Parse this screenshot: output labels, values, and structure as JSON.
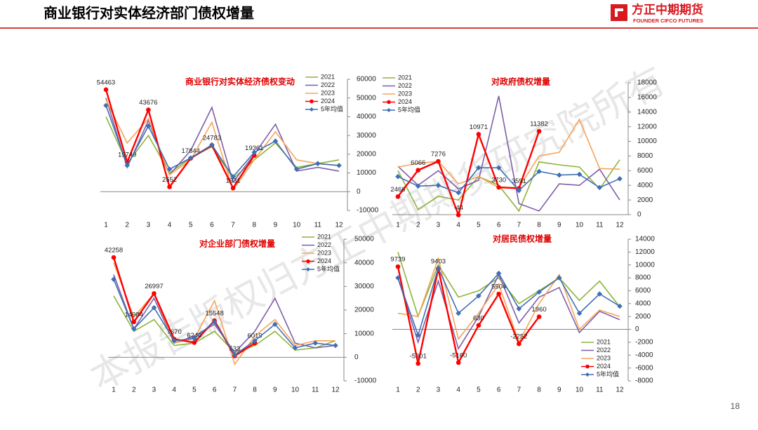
{
  "header": {
    "title": "商业银行对实体经济部门债权增量",
    "logo": "方正中期期货",
    "logo_en": "FOUNDER CIFCO FUTURES",
    "page": "18",
    "watermark": "本报告版权归方正中期期货研究院所有"
  },
  "chart_data": [
    {
      "type": "line",
      "title": "商业银行对实体经济债权变动",
      "legend": "upper right",
      "categories": [
        "1",
        "2",
        "3",
        "4",
        "5",
        "6",
        "7",
        "8",
        "9",
        "10",
        "11",
        "12"
      ],
      "ylim": [
        -10000,
        60000
      ],
      "yticks": [
        -10000,
        0,
        10000,
        20000,
        30000,
        40000,
        50000,
        60000
      ],
      "series": [
        {
          "name": "2021",
          "color": "#8fb339",
          "values": [
            40000,
            15000,
            30000,
            10000,
            18000,
            24000,
            7000,
            17000,
            26000,
            13000,
            15000,
            17000
          ]
        },
        {
          "name": "2022",
          "color": "#7f5fa8",
          "values": [
            50000,
            13000,
            38000,
            9000,
            22000,
            45000,
            5000,
            20000,
            36000,
            11000,
            13000,
            11000
          ]
        },
        {
          "name": "2023",
          "color": "#f5a55a",
          "values": [
            49000,
            26000,
            39000,
            9000,
            17000,
            37000,
            1000,
            17000,
            32000,
            17000,
            15000,
            14000
          ]
        },
        {
          "name": "2024",
          "color": "#ff0000",
          "marker": "circle",
          "show_labels": true,
          "values": [
            54463,
            15749,
            43676,
            2552,
            17844,
            24783,
            1931,
            19361,
            null,
            null,
            null,
            null
          ]
        },
        {
          "name": "5年均值",
          "color": "#3f6fb5",
          "marker": "diamond",
          "values": [
            46000,
            14000,
            35000,
            12000,
            18000,
            25000,
            8000,
            21000,
            27000,
            12000,
            15000,
            14000
          ]
        }
      ]
    },
    {
      "type": "line",
      "title": "对政府债权增量",
      "legend": "upper left",
      "categories": [
        "1",
        "2",
        "3",
        "4",
        "5",
        "6",
        "7",
        "8",
        "9",
        "10",
        "11",
        "12"
      ],
      "ylim": [
        0,
        18000
      ],
      "yticks": [
        0,
        2000,
        4000,
        6000,
        8000,
        10000,
        12000,
        14000,
        16000,
        18000
      ],
      "series": [
        {
          "name": "2021",
          "color": "#8fb339",
          "values": [
            6000,
            700,
            2500,
            2000,
            5200,
            4000,
            500,
            7200,
            6800,
            6500,
            3500,
            7500
          ]
        },
        {
          "name": "2022",
          "color": "#7f5fa8",
          "values": [
            6600,
            4000,
            6000,
            3500,
            4700,
            16200,
            1500,
            500,
            4200,
            4000,
            6200,
            2000
          ]
        },
        {
          "name": "2023",
          "color": "#f5a55a",
          "values": [
            6500,
            7000,
            7300,
            4200,
            5200,
            3700,
            3700,
            8000,
            8500,
            13000,
            6300,
            6200
          ]
        },
        {
          "name": "2024",
          "color": "#ff0000",
          "marker": "circle",
          "show_labels": true,
          "values": [
            2466,
            6066,
            7276,
            -44,
            10971,
            3730,
            3591,
            11382,
            null,
            null,
            null,
            null
          ]
        },
        {
          "name": "5年均值",
          "color": "#3f6fb5",
          "marker": "diamond",
          "values": [
            5200,
            3900,
            4000,
            3000,
            6400,
            6400,
            3300,
            5900,
            5400,
            5500,
            3700,
            4900
          ]
        }
      ]
    },
    {
      "type": "line",
      "title": "对企业部门债权增量",
      "legend": "upper right",
      "categories": [
        "1",
        "2",
        "3",
        "4",
        "5",
        "6",
        "7",
        "8",
        "9",
        "10",
        "11",
        "12"
      ],
      "ylim": [
        -10000,
        50000
      ],
      "yticks": [
        -10000,
        0,
        10000,
        20000,
        30000,
        40000,
        50000
      ],
      "series": [
        {
          "name": "2021",
          "color": "#8fb339",
          "values": [
            26000,
            11000,
            16000,
            5000,
            6000,
            11000,
            2000,
            5000,
            11000,
            3000,
            4000,
            7000
          ]
        },
        {
          "name": "2022",
          "color": "#7f5fa8",
          "values": [
            35000,
            12000,
            25000,
            6000,
            9000,
            14000,
            2000,
            11000,
            25000,
            6000,
            4000,
            5000
          ]
        },
        {
          "name": "2023",
          "color": "#f5a55a",
          "values": [
            40000,
            17000,
            27000,
            6000,
            8000,
            24000,
            -3000,
            9000,
            16000,
            5000,
            7000,
            7000
          ]
        },
        {
          "name": "2024",
          "color": "#ff0000",
          "marker": "circle",
          "show_labels": true,
          "values": [
            42258,
            14984,
            26997,
            7670,
            6244,
            15548,
            533,
            6019,
            null,
            null,
            null,
            null
          ]
        },
        {
          "name": "5年均值",
          "color": "#3f6fb5",
          "marker": "diamond",
          "values": [
            33000,
            12000,
            21000,
            7000,
            8000,
            15000,
            1000,
            7000,
            14000,
            4000,
            6000,
            5000
          ]
        }
      ]
    },
    {
      "type": "line",
      "title": "对居民债权增量",
      "legend": "lower right",
      "categories": [
        "1",
        "2",
        "3",
        "4",
        "5",
        "6",
        "7",
        "8",
        "9",
        "10",
        "11",
        "12"
      ],
      "ylim": [
        -8000,
        14000
      ],
      "yticks": [
        -8000,
        -6000,
        -4000,
        -2000,
        0,
        2000,
        4000,
        6000,
        8000,
        10000,
        12000,
        14000
      ],
      "series": [
        {
          "name": "2021",
          "color": "#8fb339",
          "values": [
            12000,
            2000,
            10000,
            5000,
            6000,
            8000,
            4000,
            6000,
            8000,
            4500,
            7500,
            3500
          ]
        },
        {
          "name": "2022",
          "color": "#7f5fa8",
          "values": [
            8000,
            -2000,
            7500,
            -3000,
            2000,
            8500,
            1000,
            5000,
            6500,
            -500,
            2800,
            1500
          ]
        },
        {
          "name": "2023",
          "color": "#f5a55a",
          "values": [
            2500,
            2000,
            11000,
            -1500,
            2500,
            7000,
            -2000,
            4000,
            8500,
            0,
            3000,
            2000
          ]
        },
        {
          "name": "2024",
          "color": "#ff0000",
          "marker": "circle",
          "show_labels": true,
          "values": [
            9739,
            -5301,
            9403,
            -5160,
            630,
            5504,
            -2252,
            1960,
            null,
            null,
            null,
            null
          ]
        },
        {
          "name": "5年均值",
          "color": "#3f6fb5",
          "marker": "diamond",
          "values": [
            8000,
            -900,
            9500,
            2500,
            5200,
            8700,
            3200,
            5800,
            8000,
            2500,
            5500,
            3600
          ]
        }
      ]
    }
  ]
}
